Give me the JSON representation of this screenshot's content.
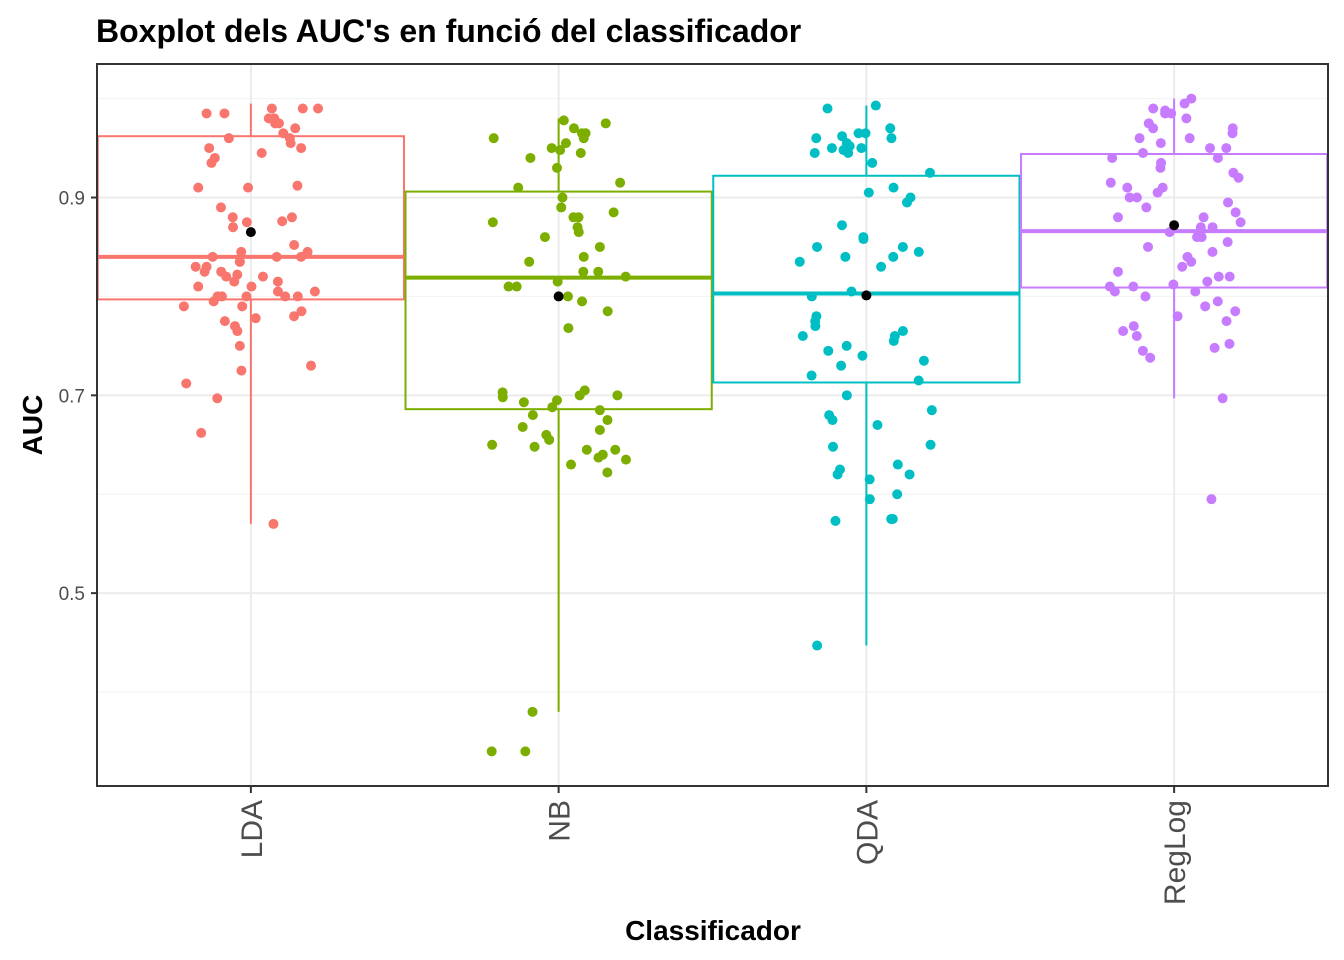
{
  "chart_data": {
    "type": "boxplot",
    "title": "Boxplot dels AUC's en funció del classificador",
    "xlabel": "Classificador",
    "ylabel": "AUC",
    "categories": [
      "LDA",
      "NB",
      "QDA",
      "RegLog"
    ],
    "colors": [
      "#F8766D",
      "#7CAE00",
      "#00BFC4",
      "#C77CFF"
    ],
    "mean_color": "#000000",
    "ylim": [
      0.305,
      1.035
    ],
    "yticks": [
      0.5,
      0.7,
      0.9
    ],
    "ytick_labels": [
      "0.5",
      "0.7",
      "0.9"
    ],
    "grid": true,
    "legend": "none",
    "boxes": [
      {
        "name": "LDA",
        "whisker_low": 0.57,
        "q1": 0.797,
        "median": 0.84,
        "q3": 0.962,
        "whisker_high": 0.995,
        "mean": 0.865
      },
      {
        "name": "NB",
        "whisker_low": 0.38,
        "q1": 0.686,
        "median": 0.819,
        "q3": 0.906,
        "whisker_high": 0.98,
        "mean": 0.8
      },
      {
        "name": "QDA",
        "whisker_low": 0.447,
        "q1": 0.713,
        "median": 0.803,
        "q3": 0.922,
        "whisker_high": 0.993,
        "mean": 0.801
      },
      {
        "name": "RegLog",
        "whisker_low": 0.697,
        "q1": 0.809,
        "median": 0.866,
        "q3": 0.944,
        "whisker_high": 1.0,
        "mean": 0.872
      }
    ],
    "points": [
      {
        "name": "LDA",
        "values": [
          0.99,
          0.985,
          0.98,
          0.99,
          0.975,
          0.98,
          0.985,
          0.99,
          0.975,
          0.97,
          0.965,
          0.96,
          0.955,
          0.95,
          0.945,
          0.94,
          0.935,
          0.96,
          0.95,
          0.912,
          0.91,
          0.875,
          0.876,
          0.88,
          0.89,
          0.87,
          0.845,
          0.84,
          0.835,
          0.845,
          0.852,
          0.83,
          0.825,
          0.82,
          0.815,
          0.81,
          0.805,
          0.8,
          0.8,
          0.795,
          0.79,
          0.785,
          0.78,
          0.775,
          0.778,
          0.8,
          0.805,
          0.81,
          0.82,
          0.83,
          0.84,
          0.822,
          0.815,
          0.8,
          0.77,
          0.765,
          0.75,
          0.73,
          0.725,
          0.712,
          0.697,
          0.662,
          0.57,
          0.79,
          0.8,
          0.825,
          0.835,
          0.84,
          0.88,
          0.91
        ]
      },
      {
        "name": "NB",
        "values": [
          0.978,
          0.975,
          0.97,
          0.965,
          0.96,
          0.955,
          0.95,
          0.948,
          0.945,
          0.94,
          0.93,
          0.915,
          0.91,
          0.89,
          0.885,
          0.88,
          0.875,
          0.87,
          0.865,
          0.86,
          0.85,
          0.84,
          0.835,
          0.825,
          0.82,
          0.815,
          0.81,
          0.8,
          0.795,
          0.785,
          0.768,
          0.705,
          0.703,
          0.7,
          0.698,
          0.693,
          0.688,
          0.685,
          0.68,
          0.675,
          0.668,
          0.665,
          0.66,
          0.655,
          0.65,
          0.648,
          0.645,
          0.64,
          0.637,
          0.635,
          0.63,
          0.622,
          0.38,
          0.34,
          0.34,
          0.9,
          0.88,
          0.96,
          0.965,
          0.695,
          0.7,
          0.645,
          0.825,
          0.81
        ]
      },
      {
        "name": "QDA",
        "values": [
          0.993,
          0.99,
          0.97,
          0.965,
          0.962,
          0.96,
          0.955,
          0.952,
          0.95,
          0.948,
          0.945,
          0.935,
          0.925,
          0.91,
          0.905,
          0.9,
          0.895,
          0.872,
          0.86,
          0.858,
          0.85,
          0.845,
          0.84,
          0.835,
          0.83,
          0.805,
          0.8,
          0.78,
          0.775,
          0.77,
          0.765,
          0.76,
          0.755,
          0.75,
          0.745,
          0.74,
          0.735,
          0.73,
          0.72,
          0.715,
          0.7,
          0.685,
          0.68,
          0.675,
          0.67,
          0.65,
          0.648,
          0.63,
          0.625,
          0.62,
          0.62,
          0.615,
          0.6,
          0.595,
          0.575,
          0.575,
          0.573,
          0.447,
          0.85,
          0.76,
          0.96,
          0.965,
          0.95,
          0.945,
          0.84
        ]
      },
      {
        "name": "RegLog",
        "values": [
          1.0,
          0.995,
          0.99,
          0.988,
          0.985,
          0.98,
          0.975,
          0.97,
          0.965,
          0.96,
          0.955,
          0.95,
          0.945,
          0.94,
          0.935,
          0.93,
          0.925,
          0.92,
          0.915,
          0.91,
          0.905,
          0.9,
          0.895,
          0.89,
          0.885,
          0.88,
          0.875,
          0.87,
          0.865,
          0.86,
          0.855,
          0.85,
          0.845,
          0.84,
          0.835,
          0.83,
          0.825,
          0.82,
          0.815,
          0.81,
          0.805,
          0.8,
          0.795,
          0.79,
          0.785,
          0.78,
          0.775,
          0.77,
          0.765,
          0.76,
          0.752,
          0.748,
          0.745,
          0.738,
          0.697,
          0.595,
          0.87,
          0.86,
          0.81,
          0.82,
          0.94,
          0.95,
          0.9,
          0.91,
          0.88,
          0.96,
          0.97,
          0.985,
          0.812,
          0.805
        ]
      }
    ]
  }
}
